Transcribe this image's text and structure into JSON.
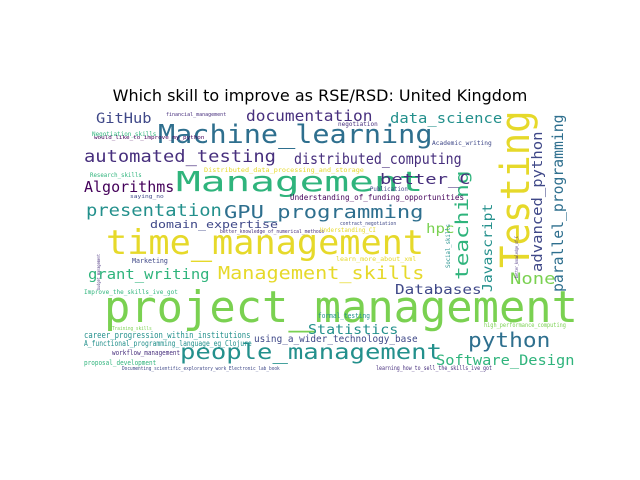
{
  "title": "Which skill to improve as RSE/RSD: United Kingdom",
  "palette": {
    "yellow": "#e6d92a",
    "lime": "#7ad151",
    "green": "#2fb47c",
    "teal": "#23908c",
    "blue": "#2e6f8e",
    "indigo": "#3f4888",
    "purple": "#472f7d",
    "dark": "#44015a"
  },
  "words": [
    {
      "text": "project_management",
      "color": "lime"
    },
    {
      "text": "time_management",
      "color": "yellow"
    },
    {
      "text": "Testing",
      "color": "yellow"
    },
    {
      "text": "Management",
      "color": "green"
    },
    {
      "text": "Machine_learning",
      "color": "blue"
    },
    {
      "text": "people_management",
      "color": "teal"
    },
    {
      "text": "Management_skills",
      "color": "yellow"
    },
    {
      "text": "GPU_programming",
      "color": "blue"
    },
    {
      "text": "automated_testing",
      "color": "purple"
    },
    {
      "text": "presentation",
      "color": "teal"
    },
    {
      "text": "python",
      "color": "blue"
    },
    {
      "text": "teaching",
      "color": "green"
    },
    {
      "text": "documentation",
      "color": "purple"
    },
    {
      "text": "distributed_computing",
      "color": "purple"
    },
    {
      "text": "parallel_programming",
      "color": "blue"
    },
    {
      "text": "data_science",
      "color": "teal"
    },
    {
      "text": "advanced_python",
      "color": "indigo"
    },
    {
      "text": "better_C",
      "color": "purple"
    },
    {
      "text": "grant_writing",
      "color": "green"
    },
    {
      "text": "Algorithms",
      "color": "dark"
    },
    {
      "text": "None",
      "color": "lime"
    },
    {
      "text": "Software_Design",
      "color": "green"
    },
    {
      "text": "GitHub",
      "color": "indigo"
    },
    {
      "text": "Databases",
      "color": "indigo"
    },
    {
      "text": "Statistics",
      "color": "teal"
    },
    {
      "text": "Javascript",
      "color": "teal"
    },
    {
      "text": "hpc",
      "color": "lime"
    },
    {
      "text": "domain_expertise",
      "color": "indigo"
    },
    {
      "text": "using_a_wider_technology_base",
      "color": "indigo"
    },
    {
      "text": "career_progression_within_institutions",
      "color": "teal"
    },
    {
      "text": "Understanding_of_funding_opportunities",
      "color": "dark"
    },
    {
      "text": "A_functional_programming_language_eg_Clojure",
      "color": "teal"
    },
    {
      "text": "workflow_management",
      "color": "purple"
    },
    {
      "text": "proposal_development",
      "color": "green"
    },
    {
      "text": "Marketing",
      "color": "indigo"
    },
    {
      "text": "formal_testing",
      "color": "teal"
    },
    {
      "text": "Documenting_scientific_exploratory_work_Electronic_lab_book",
      "color": "indigo"
    },
    {
      "text": "learning_how_to_sell_the_skills_ive_got",
      "color": "purple"
    },
    {
      "text": "Improve_the_skills_ive_got",
      "color": "green"
    },
    {
      "text": "Negotiation_skills",
      "color": "green"
    },
    {
      "text": "Research_skills",
      "color": "green"
    },
    {
      "text": "financial_management",
      "color": "purple"
    },
    {
      "text": "negotiation",
      "color": "purple"
    },
    {
      "text": "Academic_writing",
      "color": "indigo"
    },
    {
      "text": "Publication",
      "color": "indigo"
    },
    {
      "text": "Distributed_data_processing_and_storage",
      "color": "yellow"
    },
    {
      "text": "better_knowledge_of_numerical_methods",
      "color": "purple"
    },
    {
      "text": "Understanding_CI",
      "color": "yellow"
    },
    {
      "text": "contract_negotiation",
      "color": "indigo"
    },
    {
      "text": "high_performance_computing",
      "color": "lime"
    },
    {
      "text": "Training_skills",
      "color": "lime"
    },
    {
      "text": "Social_skills",
      "color": "teal"
    },
    {
      "text": "saying_no",
      "color": "indigo"
    },
    {
      "text": "learn_more_about_xml",
      "color": "yellow"
    },
    {
      "text": "budget_management",
      "color": "purple"
    },
    {
      "text": "better_knowledge_of_C",
      "color": "purple"
    },
    {
      "text": "would_like_to_improve_my_python",
      "color": "dark"
    }
  ]
}
